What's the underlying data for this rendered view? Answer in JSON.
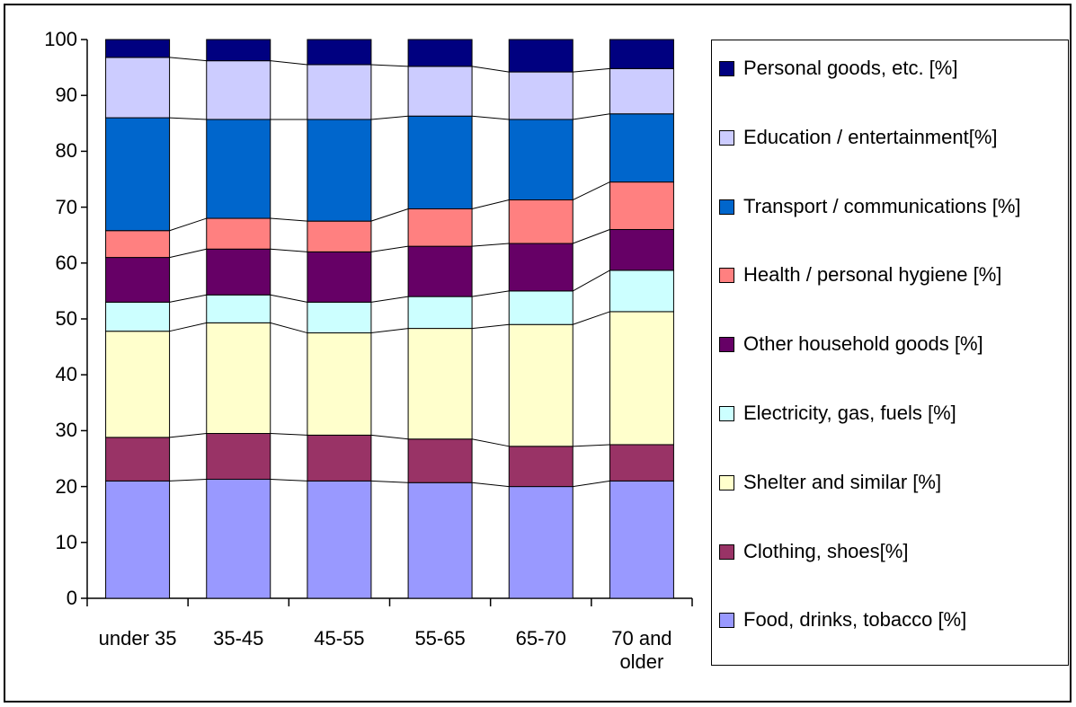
{
  "chart_data": {
    "type": "stacked_bar",
    "categories": [
      "under 35",
      "35-45",
      "45-55",
      "55-65",
      "65-70",
      "70 and older"
    ],
    "series": [
      {
        "name": "Food, drinks, tobacco  [%]",
        "color": "#9999FF",
        "values": [
          21,
          21.3,
          21,
          20.7,
          20,
          21
        ]
      },
      {
        "name": "Clothing, shoes[%]",
        "color": "#993366",
        "values": [
          7.8,
          8.2,
          8.2,
          7.8,
          7.2,
          6.5
        ]
      },
      {
        "name": "Shelter and similar [%]",
        "color": "#FFFFCC",
        "values": [
          19,
          19.8,
          18.3,
          19.8,
          21.8,
          23.8
        ]
      },
      {
        "name": "Electricity, gas, fuels [%]",
        "color": "#CCFFFF",
        "values": [
          5.2,
          5,
          5.5,
          5.7,
          6,
          7.4
        ]
      },
      {
        "name": "Other household goods [%]",
        "color": "#660066",
        "values": [
          8,
          8.2,
          9,
          9,
          8.5,
          7.3
        ]
      },
      {
        "name": "Health / personal hygiene [%]",
        "color": "#FF8080",
        "values": [
          4.8,
          5.5,
          5.5,
          6.7,
          7.8,
          8.5
        ]
      },
      {
        "name": "Transport / communications [%]",
        "color": "#0066CC",
        "values": [
          20.2,
          17.7,
          18.2,
          16.6,
          14.4,
          12.2
        ]
      },
      {
        "name": "Education / entertainment[%]",
        "color": "#CCCCFF",
        "values": [
          10.8,
          10.5,
          9.8,
          8.9,
          8.5,
          8.1
        ]
      },
      {
        "name": "Personal goods, etc. [%]",
        "color": "#000080",
        "values": [
          3.2,
          3.8,
          4.5,
          4.8,
          5.8,
          5.2
        ]
      }
    ],
    "ylim": [
      0,
      100
    ],
    "yticks": [
      0,
      10,
      20,
      30,
      40,
      50,
      60,
      70,
      80,
      90,
      100
    ],
    "series_lines": true
  }
}
